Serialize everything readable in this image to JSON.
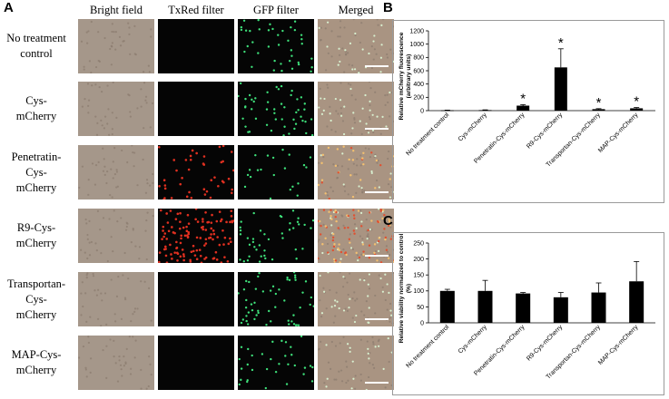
{
  "panel_a": {
    "letter": "A",
    "column_headers": [
      "Bright field",
      "TxRed filter",
      "GFP filter",
      "Merged"
    ],
    "rows": [
      {
        "label_lines": [
          "No treatment",
          "control"
        ],
        "red_level": 0,
        "green_level": 0.55
      },
      {
        "label_lines": [
          "Cys-",
          "mCherry"
        ],
        "red_level": 0,
        "green_level": 0.7
      },
      {
        "label_lines": [
          "Penetratin-",
          "Cys-",
          "mCherry"
        ],
        "red_level": 0.35,
        "green_level": 0.3
      },
      {
        "label_lines": [
          "R9-Cys-",
          "mCherry"
        ],
        "red_level": 1.0,
        "green_level": 0.6
      },
      {
        "label_lines": [
          "Transportan-",
          "Cys-",
          "mCherry"
        ],
        "red_level": 0,
        "green_level": 0.75
      },
      {
        "label_lines": [
          "MAP-Cys-",
          "mCherry"
        ],
        "red_level": 0,
        "green_level": 0.45
      }
    ],
    "colors": {
      "bright": "#a5978a",
      "dark": "#050505",
      "red": "#e03020",
      "green": "#3ee07a",
      "merged": "#a99482"
    }
  },
  "panel_b": {
    "letter": "B",
    "chart_data": {
      "type": "bar",
      "categories": [
        "No treatment control",
        "Cys-mCherry",
        "Penetratin-Cys-mCherry",
        "R9-Cys-mCherry",
        "Transportan-Cys-mCherry",
        "MAP-Cys-mCherry"
      ],
      "values": [
        5,
        8,
        75,
        650,
        22,
        35
      ],
      "errors": [
        3,
        4,
        15,
        280,
        8,
        12
      ],
      "significance": [
        "",
        "",
        "*",
        "*",
        "*",
        "*"
      ],
      "ylabel_lines": [
        "Relative mCherry fluorescence",
        "(arbitrary units)"
      ],
      "yticks": [
        0,
        200,
        400,
        600,
        800,
        1000,
        1200
      ],
      "ylim": [
        0,
        1200
      ],
      "bar_color": "#000000"
    }
  },
  "panel_c": {
    "letter": "C",
    "chart_data": {
      "type": "bar",
      "categories": [
        "No treatment control",
        "Cys-mCherry",
        "Penetratin-Cys-mCherry",
        "R9-Cys-mCherry",
        "Transportan-Cys-mCherry",
        "MAP-Cys-mCherry"
      ],
      "values": [
        100,
        100,
        92,
        80,
        95,
        130
      ],
      "errors": [
        5,
        33,
        3,
        15,
        30,
        62
      ],
      "ylabel_lines": [
        "Relative viability normalized to control",
        "(%)"
      ],
      "yticks": [
        0,
        50,
        100,
        150,
        200,
        250
      ],
      "ylim": [
        0,
        250
      ],
      "bar_color": "#000000"
    }
  }
}
